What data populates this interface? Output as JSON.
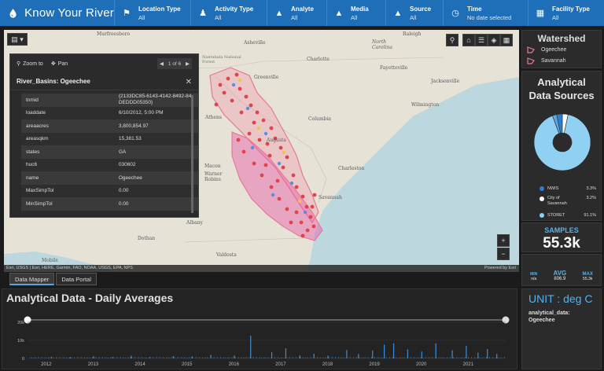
{
  "app": {
    "title": "Know Your River"
  },
  "filters": [
    {
      "label": "Location Type",
      "value": "All",
      "icon": "location-icon"
    },
    {
      "label": "Activity Type",
      "value": "All",
      "icon": "activity-icon"
    },
    {
      "label": "Analyte",
      "value": "All",
      "icon": "drop-icon"
    },
    {
      "label": "Media",
      "value": "All",
      "icon": "drop-icon"
    },
    {
      "label": "Source",
      "value": "All",
      "icon": "drop-icon"
    },
    {
      "label": "Time",
      "value": "No date selected",
      "icon": "clock-icon"
    },
    {
      "label": "Facility Type",
      "value": "All",
      "icon": "building-icon"
    }
  ],
  "map": {
    "labels": {
      "murfreesboro": "Murfreesboro",
      "asheville": "Asheville",
      "north_carolina": "North Carolina",
      "raleigh": "Raleigh",
      "charlotte": "Charlotte",
      "fayetteville": "Fayetteville",
      "jacksonville": "Jacksonville",
      "greenville": "Greenville",
      "wilmington": "Wilmington",
      "athens": "Athens",
      "columbia": "Columbia",
      "augusta": "Augusta",
      "charleston": "Charleston",
      "macon": "Macon",
      "warner_robins": "Warner Robins",
      "albany": "Albany",
      "dothan": "Dothan",
      "mobile": "Mobile",
      "valdosta": "Valdosta",
      "savannah": "Savannah",
      "nantahala": "Nantahala National Forest"
    },
    "attribution": "Esri, USGS | Esri, HERE, Garmin, FAO, NOAA, USGS, EPA, NPS",
    "powered_by": "Powered by Esri",
    "zoom_in": "+",
    "zoom_out": "−"
  },
  "popup": {
    "zoom_to": "Zoom to",
    "pan": "Pan",
    "pager": "1 of 6",
    "title": "River_Basins: Ogeechee",
    "rows": [
      {
        "key": "tnmid",
        "value": "{2133DC85-6143-4142-8492-84DEDDD05350}"
      },
      {
        "key": "loaddate",
        "value": "6/10/2012, 5:00 PM"
      },
      {
        "key": "areaacres",
        "value": "3,800,854.97"
      },
      {
        "key": "areasqkm",
        "value": "15,381.53"
      },
      {
        "key": "states",
        "value": "GA"
      },
      {
        "key": "huc6",
        "value": "030602"
      },
      {
        "key": "name",
        "value": "Ogeechee"
      },
      {
        "key": "MaxSimpTol",
        "value": "0.00"
      },
      {
        "key": "MinSimpTol",
        "value": "0.00"
      }
    ]
  },
  "tabs": [
    {
      "label": "Data Mapper",
      "active": true
    },
    {
      "label": "Data Portal",
      "active": false
    }
  ],
  "watershed": {
    "title": "Watershed",
    "items": [
      "Ogeechee",
      "Savannah"
    ]
  },
  "sources": {
    "title_line1": "Analytical",
    "title_line2": "Data Sources",
    "legend": [
      {
        "name": "NWIS",
        "pct": "3.3%",
        "color": "#2f7fd1"
      },
      {
        "name_line1": "City of",
        "name_line2": "Savannah",
        "pct": "3.2%",
        "color": "#ffffff"
      },
      {
        "name": "STORET",
        "pct": "91.1%",
        "color": "#8fd0f3"
      }
    ],
    "pie": [
      {
        "name": "NWIS",
        "value": 3.3,
        "color": "#2f7fd1"
      },
      {
        "name": "City of Savannah",
        "value": 3.2,
        "color": "#ffffff"
      },
      {
        "name": "STORET",
        "value": 91.1,
        "color": "#8fd0f3"
      },
      {
        "name": "Other",
        "value": 2.4,
        "color": "#5aa8e0"
      }
    ]
  },
  "samples": {
    "label": "SAMPLES",
    "value": "55.3k"
  },
  "stats": {
    "min_label": "MIN",
    "min_value": "n/a",
    "avg_label": "AVG",
    "avg_value": "806.9",
    "max_label": "MAX",
    "max_value": "55.3k"
  },
  "unit": {
    "text": "UNIT : deg C",
    "sub_line1": "analytical_data:",
    "sub_line2": "Ogeechee"
  },
  "chart_data": {
    "type": "bar",
    "title": "Analytical Data - Daily Averages",
    "x_ticks": [
      "2012",
      "2013",
      "2014",
      "2015",
      "2016",
      "2017",
      "2018",
      "2019",
      "2020",
      "2021"
    ],
    "y_ticks": [
      "20k",
      "10k",
      "0"
    ],
    "ylim": [
      0,
      20000
    ],
    "series_color": "#3b8fd9",
    "spikes": [
      {
        "year": 2012.2,
        "value": 900
      },
      {
        "year": 2012.6,
        "value": 700
      },
      {
        "year": 2013.1,
        "value": 1200
      },
      {
        "year": 2013.5,
        "value": 800
      },
      {
        "year": 2013.9,
        "value": 1500
      },
      {
        "year": 2014.3,
        "value": 900
      },
      {
        "year": 2014.8,
        "value": 1300
      },
      {
        "year": 2015.2,
        "value": 1100
      },
      {
        "year": 2015.6,
        "value": 2000
      },
      {
        "year": 2016.1,
        "value": 1600
      },
      {
        "year": 2016.45,
        "value": 12500
      },
      {
        "year": 2016.9,
        "value": 3400
      },
      {
        "year": 2017.2,
        "value": 5600
      },
      {
        "year": 2017.5,
        "value": 1700
      },
      {
        "year": 2017.8,
        "value": 2600
      },
      {
        "year": 2018.1,
        "value": 1600
      },
      {
        "year": 2018.5,
        "value": 4700
      },
      {
        "year": 2018.75,
        "value": 2500
      },
      {
        "year": 2019.05,
        "value": 4400
      },
      {
        "year": 2019.3,
        "value": 7600
      },
      {
        "year": 2019.5,
        "value": 8400
      },
      {
        "year": 2019.8,
        "value": 5000
      },
      {
        "year": 2020.1,
        "value": 3800
      },
      {
        "year": 2020.4,
        "value": 8300
      },
      {
        "year": 2020.75,
        "value": 4500
      },
      {
        "year": 2021.05,
        "value": 6900
      },
      {
        "year": 2021.3,
        "value": 3200
      },
      {
        "year": 2021.5,
        "value": 5200
      },
      {
        "year": 2021.7,
        "value": 2500
      }
    ]
  }
}
